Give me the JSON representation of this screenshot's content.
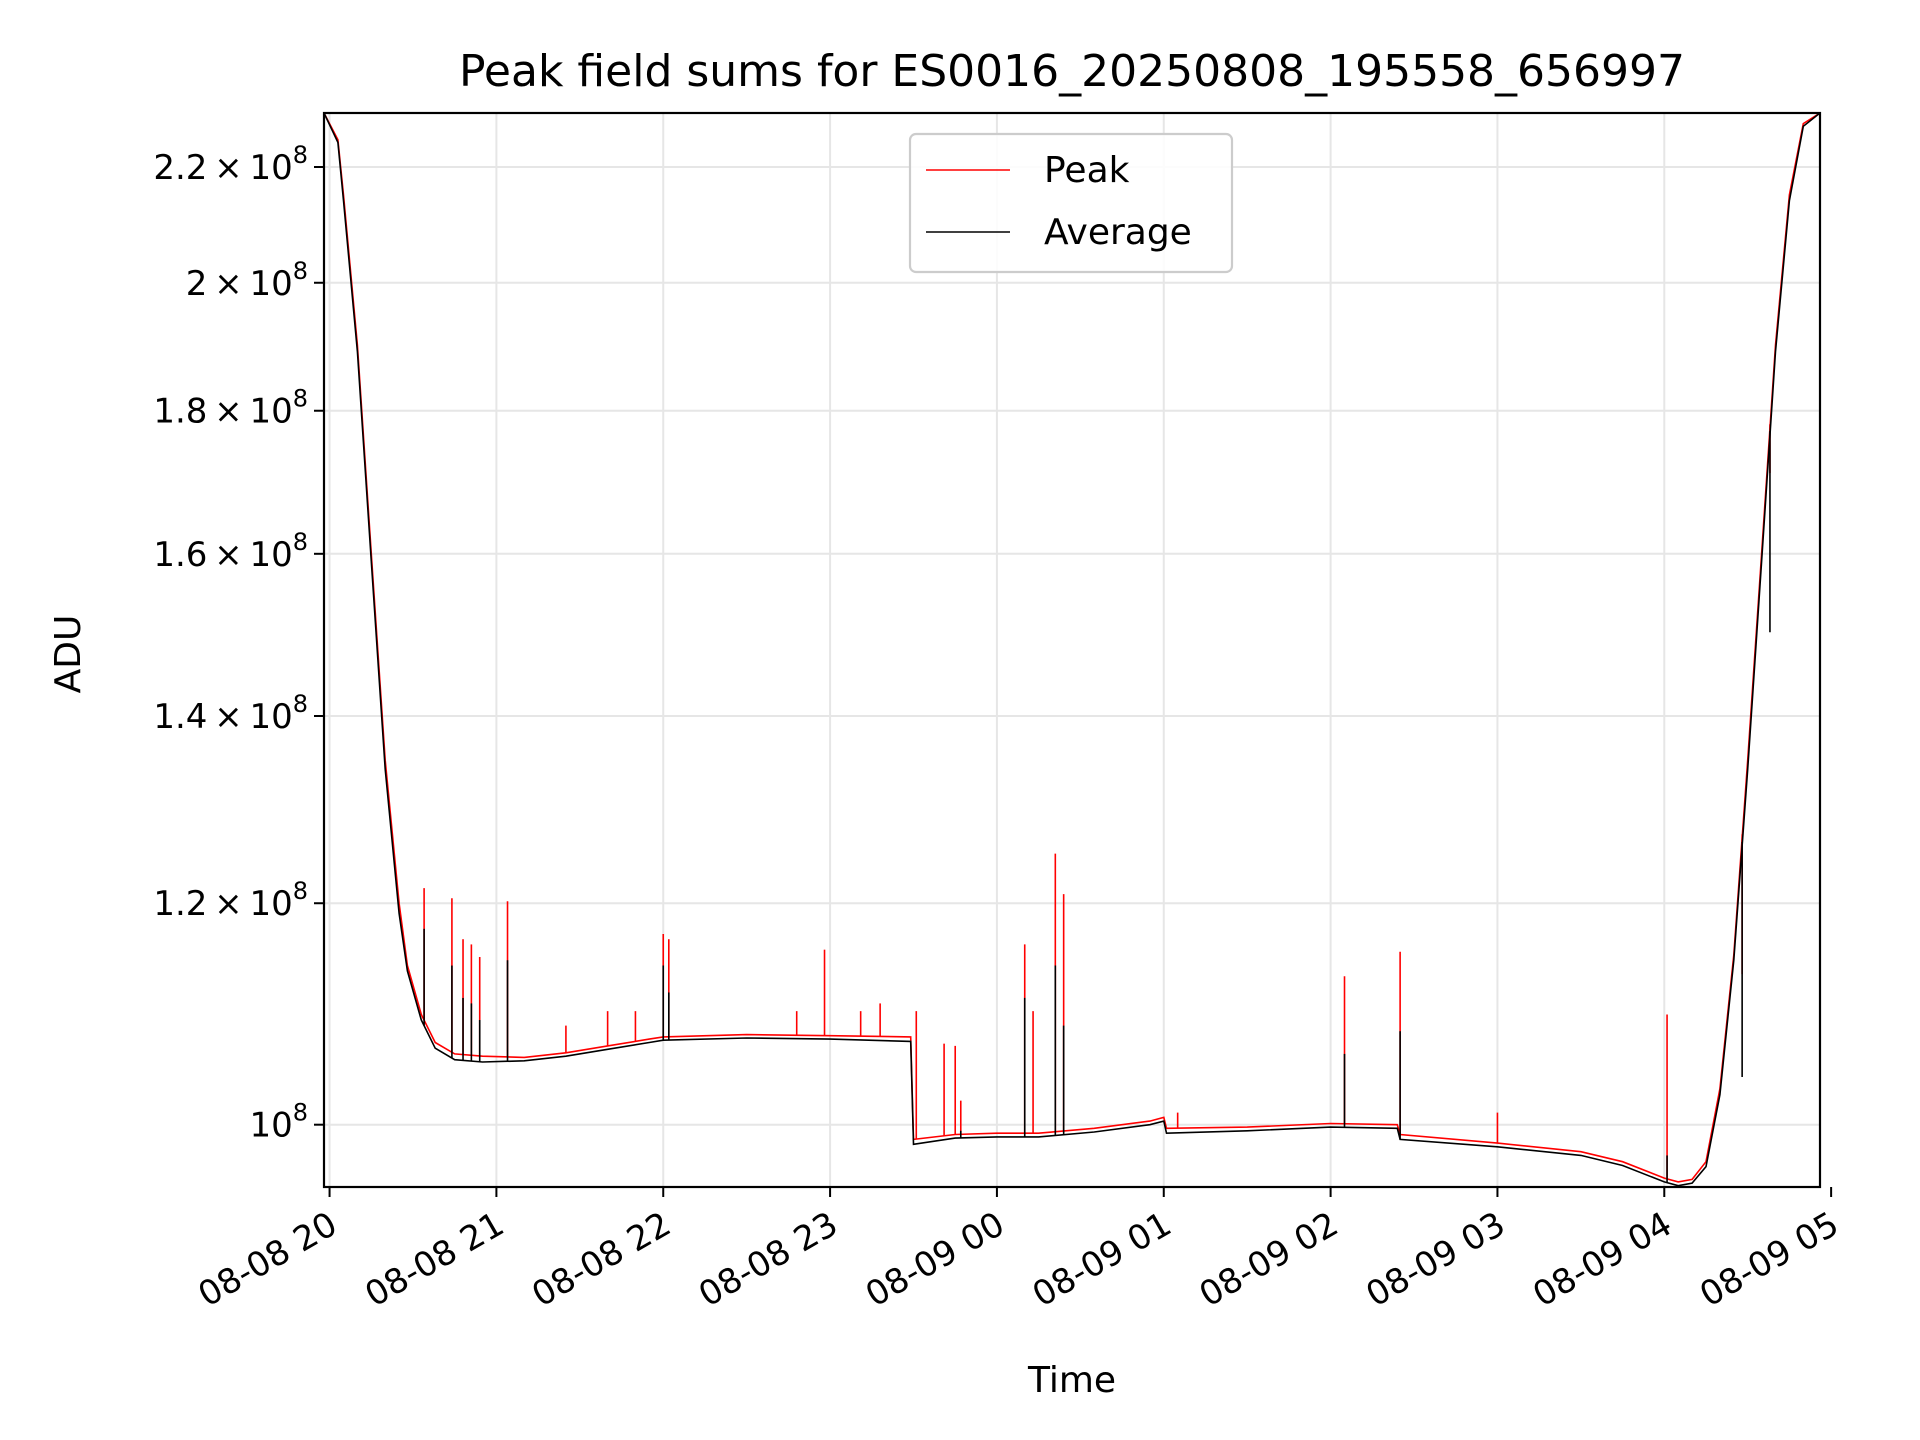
{
  "chart_data": {
    "type": "line",
    "title": "Peak field sums for ES0016_20250808_195558_656997",
    "xlabel": "Time",
    "ylabel": "ADU",
    "y_scale": "log",
    "grid": true,
    "legend_position": "top-center",
    "xlim": [
      "2025-08-08 19:58",
      "2025-08-09 04:56"
    ],
    "ylim": [
      95000000,
      230000000
    ],
    "x_ticks": [
      {
        "t": "2025-08-08 20:00",
        "label": "08-08 20"
      },
      {
        "t": "2025-08-08 21:00",
        "label": "08-08 21"
      },
      {
        "t": "2025-08-08 22:00",
        "label": "08-08 22"
      },
      {
        "t": "2025-08-08 23:00",
        "label": "08-08 23"
      },
      {
        "t": "2025-08-09 00:00",
        "label": "08-09 00"
      },
      {
        "t": "2025-08-09 01:00",
        "label": "08-09 01"
      },
      {
        "t": "2025-08-09 02:00",
        "label": "08-09 02"
      },
      {
        "t": "2025-08-09 03:00",
        "label": "08-09 03"
      },
      {
        "t": "2025-08-09 04:00",
        "label": "08-09 04"
      },
      {
        "t": "2025-08-09 05:00",
        "label": "08-09 05"
      }
    ],
    "y_ticks": [
      {
        "value": 100000000,
        "mant": "",
        "exp": "8"
      },
      {
        "value": 120000000,
        "mant": "1.2",
        "exp": "8"
      },
      {
        "value": 140000000,
        "mant": "1.4",
        "exp": "8"
      },
      {
        "value": 160000000,
        "mant": "1.6",
        "exp": "8"
      },
      {
        "value": 180000000,
        "mant": "1.8",
        "exp": "8"
      },
      {
        "value": 200000000,
        "mant": "2",
        "exp": "8"
      },
      {
        "value": 220000000,
        "mant": "2.2",
        "exp": "8"
      }
    ],
    "series": [
      {
        "name": "Peak",
        "color": "#ff0000",
        "points": [
          [
            "2025-08-08 19:58",
            230000000
          ],
          [
            "2025-08-08 20:03",
            225000000
          ],
          [
            "2025-08-08 20:05",
            215000000
          ],
          [
            "2025-08-08 20:10",
            190000000
          ],
          [
            "2025-08-08 20:15",
            160000000
          ],
          [
            "2025-08-08 20:20",
            135000000
          ],
          [
            "2025-08-08 20:25",
            120000000
          ],
          [
            "2025-08-08 20:28",
            114000000
          ],
          [
            "2025-08-08 20:33",
            109500000
          ],
          [
            "2025-08-08 20:38",
            107000000
          ],
          [
            "2025-08-08 20:45",
            106000000
          ],
          [
            "2025-08-08 20:55",
            105800000
          ],
          [
            "2025-08-08 21:10",
            105700000
          ],
          [
            "2025-08-08 21:25",
            106100000
          ],
          [
            "2025-08-08 21:40",
            106700000
          ],
          [
            "2025-08-08 21:55",
            107300000
          ],
          [
            "2025-08-08 22:00",
            107500000
          ],
          [
            "2025-08-08 22:30",
            107700000
          ],
          [
            "2025-08-08 23:00",
            107600000
          ],
          [
            "2025-08-08 23:29",
            107500000
          ],
          [
            "2025-08-08 23:30",
            98800000
          ],
          [
            "2025-08-08 23:45",
            99200000
          ],
          [
            "2025-08-09 00:00",
            99300000
          ],
          [
            "2025-08-09 00:15",
            99300000
          ],
          [
            "2025-08-09 00:35",
            99700000
          ],
          [
            "2025-08-09 00:55",
            100300000
          ],
          [
            "2025-08-09 01:00",
            100600000
          ],
          [
            "2025-08-09 01:01",
            99700000
          ],
          [
            "2025-08-09 01:30",
            99800000
          ],
          [
            "2025-08-09 02:00",
            100100000
          ],
          [
            "2025-08-09 02:24",
            100000000
          ],
          [
            "2025-08-09 02:25",
            99200000
          ],
          [
            "2025-08-09 03:00",
            98500000
          ],
          [
            "2025-08-09 03:30",
            97800000
          ],
          [
            "2025-08-09 03:45",
            97000000
          ],
          [
            "2025-08-09 04:00",
            95700000
          ],
          [
            "2025-08-09 04:05",
            95400000
          ],
          [
            "2025-08-09 04:10",
            95600000
          ],
          [
            "2025-08-09 04:15",
            97000000
          ],
          [
            "2025-08-09 04:20",
            103000000
          ],
          [
            "2025-08-09 04:25",
            115000000
          ],
          [
            "2025-08-09 04:30",
            135000000
          ],
          [
            "2025-08-09 04:35",
            160000000
          ],
          [
            "2025-08-09 04:40",
            190000000
          ],
          [
            "2025-08-09 04:45",
            215000000
          ],
          [
            "2025-08-09 04:50",
            228000000
          ],
          [
            "2025-08-09 04:56",
            230000000
          ]
        ],
        "spikes": [
          [
            "2025-08-08 20:34",
            121500000
          ],
          [
            "2025-08-08 20:44",
            120500000
          ],
          [
            "2025-08-08 20:48",
            116500000
          ],
          [
            "2025-08-08 20:51",
            116000000
          ],
          [
            "2025-08-08 20:54",
            114800000
          ],
          [
            "2025-08-08 21:04",
            120200000
          ],
          [
            "2025-08-08 21:25",
            108500000
          ],
          [
            "2025-08-08 21:40",
            109800000
          ],
          [
            "2025-08-08 21:50",
            109800000
          ],
          [
            "2025-08-08 22:00",
            117000000
          ],
          [
            "2025-08-08 22:02",
            116500000
          ],
          [
            "2025-08-08 22:48",
            109800000
          ],
          [
            "2025-08-08 22:58",
            115500000
          ],
          [
            "2025-08-08 23:11",
            109800000
          ],
          [
            "2025-08-08 23:18",
            110500000
          ],
          [
            "2025-08-08 23:31",
            109800000
          ],
          [
            "2025-08-08 23:41",
            106900000
          ],
          [
            "2025-08-08 23:45",
            106700000
          ],
          [
            "2025-08-08 23:47",
            102000000
          ],
          [
            "2025-08-09 00:10",
            116000000
          ],
          [
            "2025-08-09 00:13",
            109800000
          ],
          [
            "2025-08-09 00:21",
            125000000
          ],
          [
            "2025-08-09 00:24",
            120900000
          ],
          [
            "2025-08-09 01:05",
            101000000
          ],
          [
            "2025-08-09 02:05",
            113000000
          ],
          [
            "2025-08-09 02:25",
            115300000
          ],
          [
            "2025-08-09 03:00",
            101000000
          ],
          [
            "2025-08-09 04:01",
            109500000
          ],
          [
            "2025-08-09 04:28",
            113200000
          ],
          [
            "2025-08-09 04:38",
            171000000
          ]
        ]
      },
      {
        "name": "Average",
        "color": "#000000",
        "points": [
          [
            "2025-08-08 19:58",
            230000000
          ],
          [
            "2025-08-08 20:03",
            224500000
          ],
          [
            "2025-08-08 20:05",
            214000000
          ],
          [
            "2025-08-08 20:10",
            189000000
          ],
          [
            "2025-08-08 20:15",
            159000000
          ],
          [
            "2025-08-08 20:20",
            134000000
          ],
          [
            "2025-08-08 20:25",
            119000000
          ],
          [
            "2025-08-08 20:28",
            113500000
          ],
          [
            "2025-08-08 20:33",
            109000000
          ],
          [
            "2025-08-08 20:38",
            106500000
          ],
          [
            "2025-08-08 20:45",
            105500000
          ],
          [
            "2025-08-08 20:55",
            105300000
          ],
          [
            "2025-08-08 21:10",
            105400000
          ],
          [
            "2025-08-08 21:25",
            105800000
          ],
          [
            "2025-08-08 21:40",
            106400000
          ],
          [
            "2025-08-08 21:55",
            107000000
          ],
          [
            "2025-08-08 22:00",
            107200000
          ],
          [
            "2025-08-08 22:30",
            107400000
          ],
          [
            "2025-08-08 23:00",
            107300000
          ],
          [
            "2025-08-08 23:29",
            107100000
          ],
          [
            "2025-08-08 23:30",
            98400000
          ],
          [
            "2025-08-08 23:45",
            98900000
          ],
          [
            "2025-08-09 00:00",
            99000000
          ],
          [
            "2025-08-09 00:15",
            99000000
          ],
          [
            "2025-08-09 00:35",
            99400000
          ],
          [
            "2025-08-09 00:55",
            100000000
          ],
          [
            "2025-08-09 01:00",
            100300000
          ],
          [
            "2025-08-09 01:01",
            99300000
          ],
          [
            "2025-08-09 01:30",
            99500000
          ],
          [
            "2025-08-09 02:00",
            99800000
          ],
          [
            "2025-08-09 02:24",
            99700000
          ],
          [
            "2025-08-09 02:25",
            98800000
          ],
          [
            "2025-08-09 03:00",
            98200000
          ],
          [
            "2025-08-09 03:30",
            97500000
          ],
          [
            "2025-08-09 03:45",
            96700000
          ],
          [
            "2025-08-09 04:00",
            95400000
          ],
          [
            "2025-08-09 04:05",
            95100000
          ],
          [
            "2025-08-09 04:10",
            95300000
          ],
          [
            "2025-08-09 04:15",
            96600000
          ],
          [
            "2025-08-09 04:20",
            102500000
          ],
          [
            "2025-08-09 04:25",
            114500000
          ],
          [
            "2025-08-09 04:30",
            134000000
          ],
          [
            "2025-08-09 04:35",
            159000000
          ],
          [
            "2025-08-09 04:40",
            189000000
          ],
          [
            "2025-08-09 04:45",
            214000000
          ],
          [
            "2025-08-09 04:50",
            227500000
          ],
          [
            "2025-08-09 04:56",
            230000000
          ]
        ],
        "spikes": [
          [
            "2025-08-08 20:34",
            117500000
          ],
          [
            "2025-08-08 20:44",
            114000000
          ],
          [
            "2025-08-08 20:48",
            111000000
          ],
          [
            "2025-08-08 20:51",
            110500000
          ],
          [
            "2025-08-08 20:54",
            109000000
          ],
          [
            "2025-08-08 21:04",
            114500000
          ],
          [
            "2025-08-08 22:00",
            114000000
          ],
          [
            "2025-08-08 22:02",
            111500000
          ],
          [
            "2025-08-08 23:47",
            99500000
          ],
          [
            "2025-08-09 00:10",
            111000000
          ],
          [
            "2025-08-09 00:21",
            114000000
          ],
          [
            "2025-08-09 00:24",
            108500000
          ],
          [
            "2025-08-09 02:05",
            106000000
          ],
          [
            "2025-08-09 02:25",
            108000000
          ],
          [
            "2025-08-09 04:01",
            97500000
          ],
          [
            "2025-08-09 04:28",
            104000000
          ],
          [
            "2025-08-09 04:38",
            150000000
          ]
        ]
      }
    ]
  }
}
